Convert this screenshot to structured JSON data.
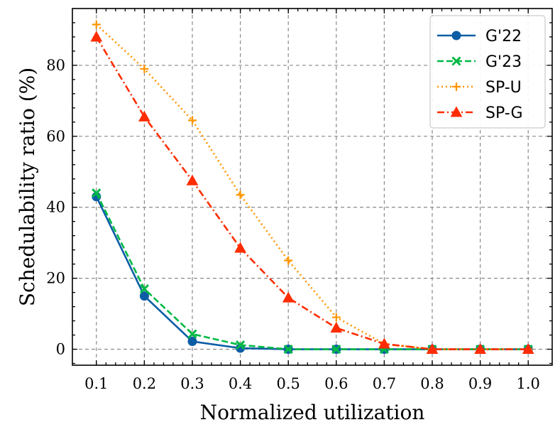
{
  "chart_data": {
    "type": "line",
    "title": "",
    "xlabel": "Normalized utilization",
    "ylabel": "Schedulability ratio (%)",
    "x": [
      0.1,
      0.2,
      0.3,
      0.4,
      0.5,
      0.6,
      0.7,
      0.8,
      0.9,
      1.0
    ],
    "x_tick_labels": [
      "0.1",
      "0.2",
      "0.3",
      "0.4",
      "0.5",
      "0.6",
      "0.7",
      "0.8",
      "0.9",
      "1.0"
    ],
    "y_ticks": [
      0,
      20,
      40,
      60,
      80
    ],
    "y_tick_labels": [
      "0",
      "20",
      "40",
      "60",
      "80"
    ],
    "xlim": [
      0.05,
      1.05
    ],
    "ylim": [
      -4.5,
      96
    ],
    "grid": true,
    "legend_position": "top-right",
    "series": [
      {
        "name": "G'22",
        "values": [
          43,
          15,
          2.2,
          0.3,
          0,
          0,
          0,
          0,
          0,
          0
        ],
        "color": "#0C5DA5",
        "dash": "solid",
        "marker": "circle"
      },
      {
        "name": "G'23",
        "values": [
          44,
          17,
          4.3,
          1.2,
          0,
          0,
          0,
          0,
          0,
          0
        ],
        "color": "#00B945",
        "dash": "dashed",
        "marker": "x"
      },
      {
        "name": "SP-U",
        "values": [
          91.5,
          79,
          64.5,
          43.5,
          25,
          9,
          1.5,
          0,
          0,
          0
        ],
        "color": "#FF9500",
        "dash": "dotted",
        "marker": "plus"
      },
      {
        "name": "SP-G",
        "values": [
          88,
          65.5,
          47.5,
          28.5,
          14.5,
          6,
          1.5,
          0,
          0,
          0
        ],
        "color": "#FF2C00",
        "dash": "dashdot",
        "marker": "triangle"
      }
    ]
  }
}
